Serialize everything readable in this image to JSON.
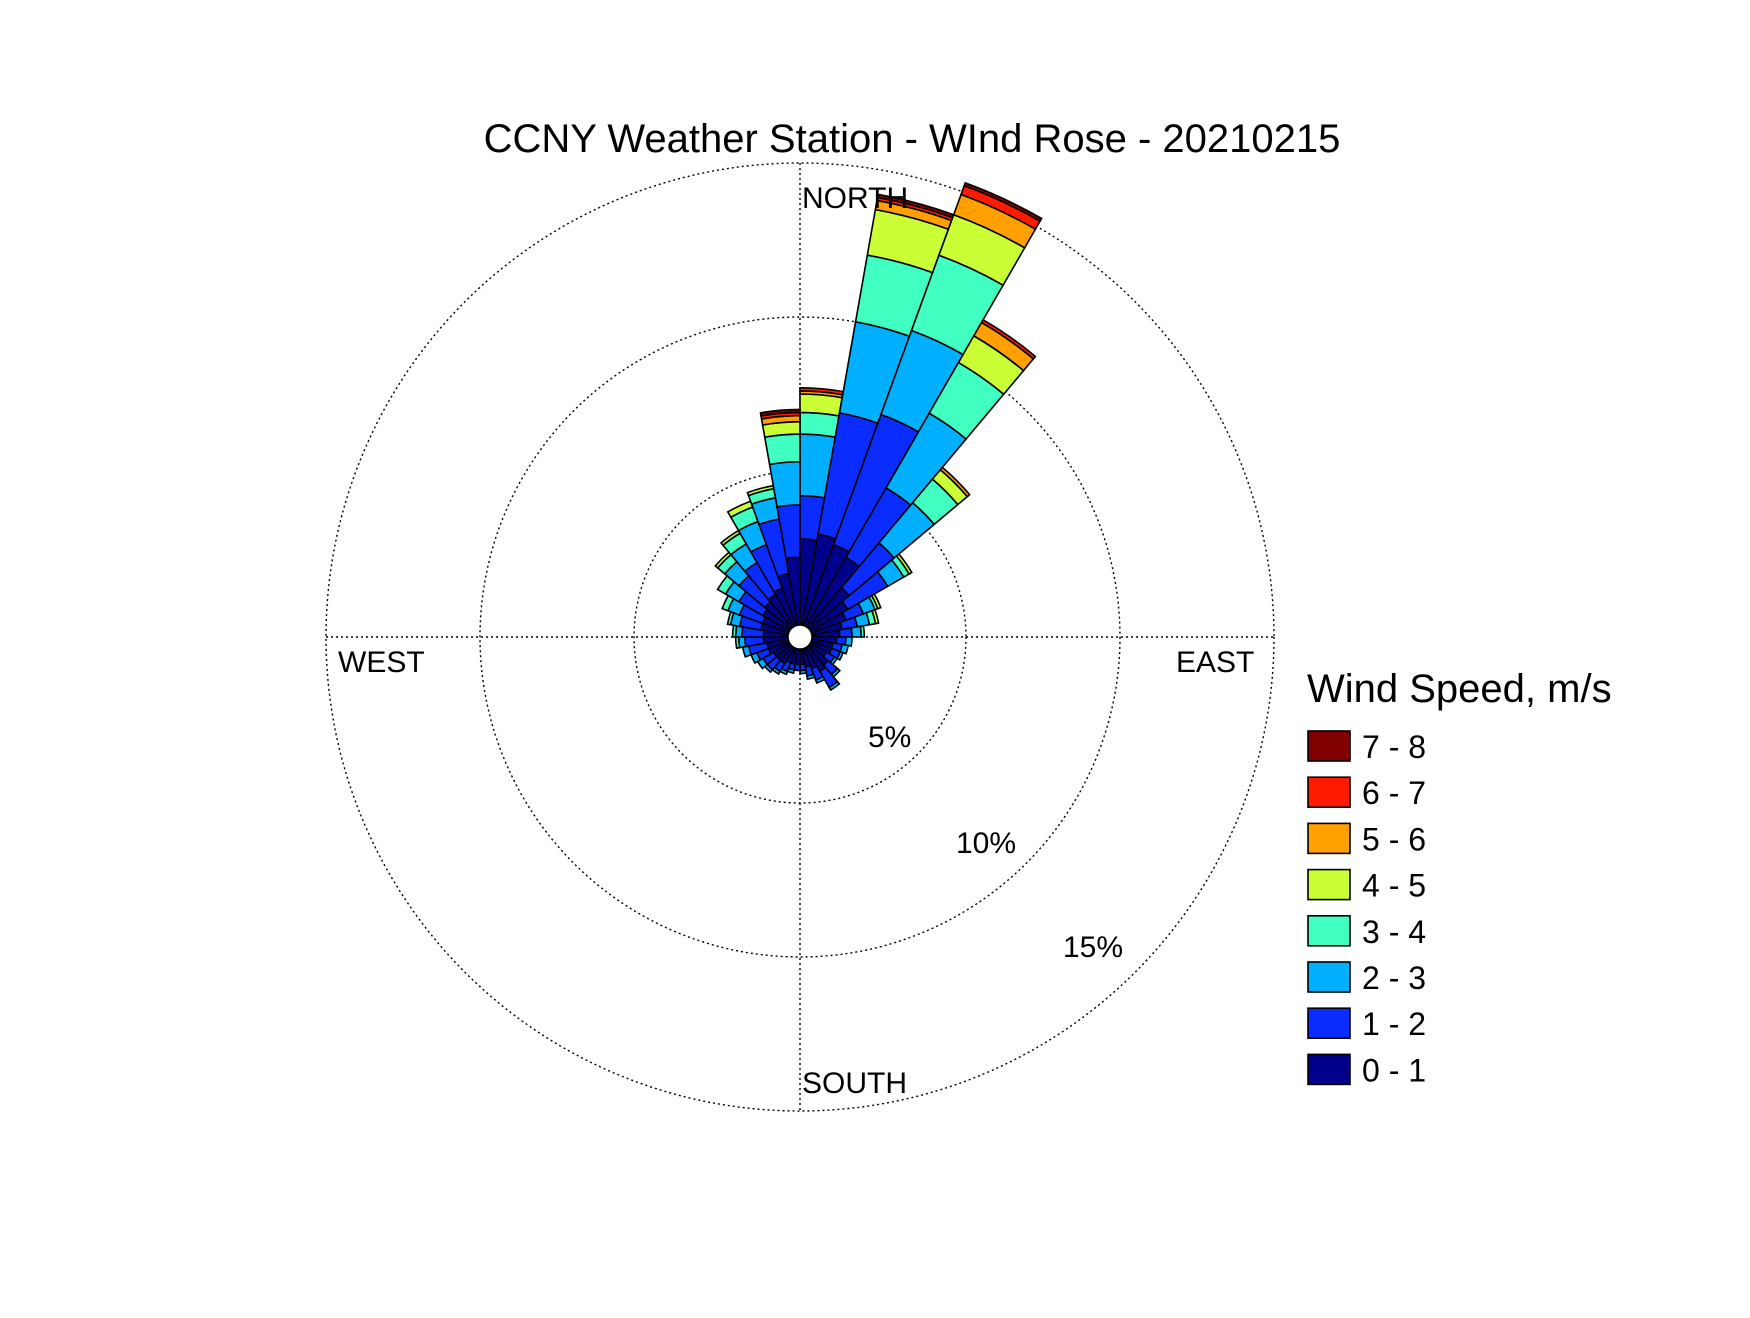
{
  "chart_data": {
    "type": "wind-rose",
    "title": "CCNY Weather Station - WInd Rose - 20210215",
    "direction_labels": {
      "north": "NORTH",
      "east": "EAST",
      "south": "SOUTH",
      "west": "WEST"
    },
    "radial_unit": "%",
    "radial_max": 15,
    "radial_ticks": [
      {
        "value": 5,
        "label": "5%"
      },
      {
        "value": 10,
        "label": "10%"
      },
      {
        "value": 15,
        "label": "15%"
      }
    ],
    "grid": "dotted",
    "legend": {
      "title": "Wind Speed, m/s",
      "placement": "right",
      "bins": [
        {
          "label": "7 - 8",
          "color": "#800000"
        },
        {
          "label": "6 - 7",
          "color": "#ff1a00"
        },
        {
          "label": "5 - 6",
          "color": "#ff9f00"
        },
        {
          "label": "4 - 5",
          "color": "#caff36"
        },
        {
          "label": "3 - 4",
          "color": "#40ffc0"
        },
        {
          "label": "2 - 3",
          "color": "#00b0ff"
        },
        {
          "label": "1 - 2",
          "color": "#0a2cff"
        },
        {
          "label": "0 - 1",
          "color": "#00008b"
        }
      ]
    },
    "speed_bins": [
      "0 - 1",
      "1 - 2",
      "2 - 3",
      "3 - 4",
      "4 - 5",
      "5 - 6",
      "6 - 7",
      "7 - 8"
    ],
    "colors": [
      "#00008b",
      "#0a2cff",
      "#00b0ff",
      "#40ffc0",
      "#caff36",
      "#ff9f00",
      "#ff1a00",
      "#800000"
    ],
    "sector_width_deg": 10,
    "directions_deg": [
      0,
      10,
      20,
      30,
      40,
      50,
      60,
      70,
      80,
      90,
      100,
      110,
      120,
      130,
      140,
      150,
      160,
      170,
      180,
      190,
      200,
      210,
      220,
      230,
      240,
      250,
      260,
      270,
      280,
      290,
      300,
      310,
      320,
      330,
      340,
      350
    ],
    "cumulative_percent": [
      [
        2.8,
        4.2,
        6.2,
        6.9,
        7.5,
        7.6,
        7.7,
        7.7
      ],
      [
        3.0,
        7.0,
        10.0,
        12.2,
        13.7,
        14.0,
        14.1,
        14.2
      ],
      [
        2.8,
        7.3,
        10.2,
        12.8,
        14.2,
        14.9,
        15.2,
        15.3
      ],
      [
        2.6,
        5.2,
        8.0,
        9.9,
        10.9,
        11.4,
        11.5,
        11.5
      ],
      [
        1.7,
        3.6,
        5.3,
        6.3,
        6.7,
        6.8,
        6.8,
        6.8
      ],
      [
        1.4,
        2.9,
        3.5,
        3.7,
        3.8,
        3.8,
        3.8,
        3.8
      ],
      [
        1.2,
        1.8,
        2.2,
        2.3,
        2.4,
        2.4,
        2.4,
        2.4
      ],
      [
        1.0,
        1.5,
        1.9,
        2.1,
        2.2,
        2.2,
        2.2,
        2.2
      ],
      [
        0.9,
        1.3,
        1.6,
        1.7,
        1.7,
        1.7,
        1.7,
        1.7
      ],
      [
        0.8,
        1.1,
        1.3,
        1.3,
        1.3,
        1.3,
        1.3,
        1.3
      ],
      [
        0.7,
        1.0,
        1.2,
        1.2,
        1.2,
        1.2,
        1.2,
        1.2
      ],
      [
        0.7,
        1.0,
        1.1,
        1.1,
        1.1,
        1.1,
        1.1,
        1.1
      ],
      [
        0.6,
        0.9,
        1.0,
        1.0,
        1.0,
        1.0,
        1.0,
        1.0
      ],
      [
        0.8,
        1.2,
        1.3,
        1.3,
        1.3,
        1.3,
        1.3,
        1.3
      ],
      [
        0.9,
        1.5,
        1.6,
        1.6,
        1.6,
        1.6,
        1.6,
        1.6
      ],
      [
        0.7,
        1.1,
        1.2,
        1.2,
        1.2,
        1.2,
        1.2,
        1.2
      ],
      [
        0.6,
        0.9,
        1.0,
        1.0,
        1.0,
        1.0,
        1.0,
        1.0
      ],
      [
        0.5,
        0.7,
        0.8,
        0.8,
        0.8,
        0.8,
        0.8,
        0.8
      ],
      [
        0.5,
        0.7,
        0.7,
        0.7,
        0.7,
        0.7,
        0.7,
        0.7
      ],
      [
        0.5,
        0.7,
        0.8,
        0.8,
        0.8,
        0.8,
        0.8,
        0.8
      ],
      [
        0.5,
        0.8,
        0.9,
        0.9,
        0.9,
        0.9,
        0.9,
        0.9
      ],
      [
        0.6,
        0.9,
        1.0,
        1.0,
        1.0,
        1.0,
        1.0,
        1.0
      ],
      [
        0.6,
        1.0,
        1.1,
        1.1,
        1.1,
        1.1,
        1.1,
        1.1
      ],
      [
        0.6,
        1.0,
        1.2,
        1.2,
        1.2,
        1.2,
        1.2,
        1.2
      ],
      [
        0.7,
        1.1,
        1.3,
        1.3,
        1.3,
        1.3,
        1.3,
        1.3
      ],
      [
        0.7,
        1.3,
        1.5,
        1.5,
        1.5,
        1.5,
        1.5,
        1.5
      ],
      [
        0.8,
        1.4,
        1.6,
        1.7,
        1.7,
        1.7,
        1.7,
        1.7
      ],
      [
        0.8,
        1.5,
        1.7,
        1.8,
        1.8,
        1.8,
        1.8,
        1.8
      ],
      [
        0.9,
        1.6,
        1.9,
        2.0,
        2.0,
        2.0,
        2.0,
        2.0
      ],
      [
        0.9,
        1.7,
        2.1,
        2.3,
        2.3,
        2.3,
        2.3,
        2.3
      ],
      [
        1.0,
        1.9,
        2.4,
        2.7,
        2.7,
        2.7,
        2.7,
        2.7
      ],
      [
        1.1,
        2.2,
        2.8,
        3.1,
        3.2,
        3.2,
        3.2,
        3.2
      ],
      [
        1.2,
        2.4,
        3.1,
        3.5,
        3.6,
        3.6,
        3.6,
        3.6
      ],
      [
        1.3,
        2.8,
        3.6,
        4.1,
        4.3,
        4.3,
        4.3,
        4.3
      ],
      [
        1.7,
        3.5,
        4.2,
        4.5,
        4.6,
        4.6,
        4.6,
        4.6
      ],
      [
        2.2,
        3.9,
        5.3,
        6.2,
        6.6,
        6.8,
        6.9,
        7.0
      ]
    ]
  }
}
